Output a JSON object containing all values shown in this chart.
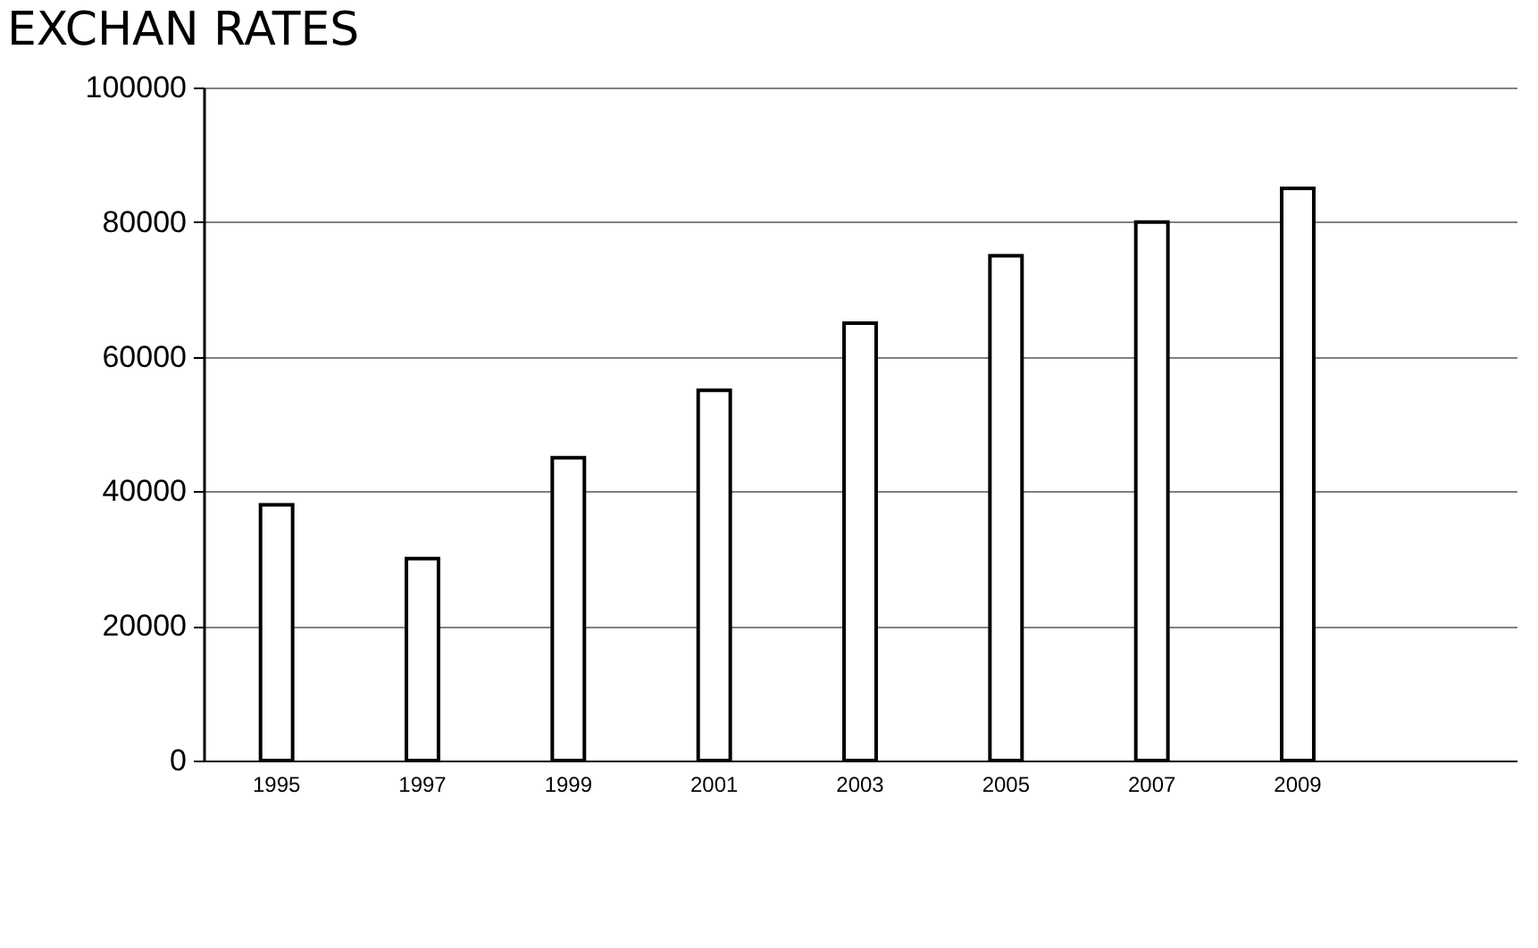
{
  "chart_data": {
    "type": "bar",
    "title": "EXCHAN RATES",
    "categories": [
      "1995",
      "1997",
      "1999",
      "2001",
      "2003",
      "2005",
      "2007",
      "2009",
      null
    ],
    "values": [
      38000,
      30000,
      45000,
      55000,
      65000,
      75000,
      80000,
      85000,
      null
    ],
    "color": "#ffffff",
    "ylim": [
      0,
      100000
    ],
    "yticks": [
      0,
      20000,
      40000,
      60000,
      80000,
      100000
    ],
    "grid": "y"
  }
}
